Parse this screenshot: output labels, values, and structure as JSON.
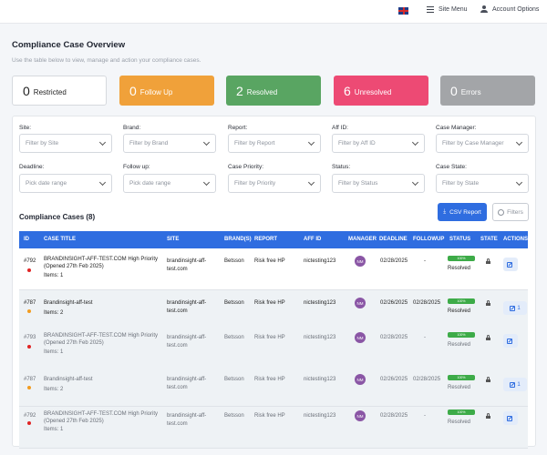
{
  "header": {
    "site_menu": "Site Menu",
    "account_options": "Account Options"
  },
  "page": {
    "title": "Compliance Case Overview",
    "subtitle": "Use the table below to view, manage and action your compliance cases."
  },
  "stats": [
    {
      "value": "0",
      "label": "Restricted",
      "color": "#ffffff"
    },
    {
      "value": "0",
      "label": "Follow Up",
      "color": "#f0a13a"
    },
    {
      "value": "2",
      "label": "Resolved",
      "color": "#59a562"
    },
    {
      "value": "6",
      "label": "Unresolved",
      "color": "#ed4a74"
    },
    {
      "value": "0",
      "label": "Errors",
      "color": "#a3a5a8"
    }
  ],
  "filters": [
    {
      "label": "Site:",
      "placeholder": "Filter by Site"
    },
    {
      "label": "Brand:",
      "placeholder": "Filter by Brand"
    },
    {
      "label": "Report:",
      "placeholder": "Filter by Report"
    },
    {
      "label": "Aff ID:",
      "placeholder": "Filter by Aff ID"
    },
    {
      "label": "Case Manager:",
      "placeholder": "Filter by Case Manager"
    },
    {
      "label": "Deadline:",
      "placeholder": "Pick date range"
    },
    {
      "label": "Follow up:",
      "placeholder": "Pick date range"
    },
    {
      "label": "Case Priority:",
      "placeholder": "Filter by Priority"
    },
    {
      "label": "Status:",
      "placeholder": "Filter by Status"
    },
    {
      "label": "Case State:",
      "placeholder": "Filter by State"
    }
  ],
  "cases": {
    "title": "Compliance Cases (8)",
    "csv_label": "CSV Report",
    "filters_label": "Filters",
    "columns": [
      "ID",
      "CASE TITLE",
      "SITE",
      "BRAND(S)",
      "REPORT",
      "AFF ID",
      "MANAGER",
      "DEADLINE",
      "FOLLOWUP",
      "STATUS",
      "STATE",
      "ACTIONS"
    ],
    "rows": [
      {
        "id": "#792",
        "title1": "BRANDINSIGHT-AFF-TEST.COM High Priority",
        "title2": "(Opened 27th Feb 2025)",
        "items": "Items: 1",
        "site1": "brandinsight-aff-",
        "site2": "test.com",
        "brand": "Betsson",
        "report": "Risk free HP",
        "aff_id": "nictesting123",
        "manager": "NM",
        "deadline": "02/28/2025",
        "followup": "-",
        "progress": "100%",
        "progress_value": 100,
        "status": "Resolved",
        "action_count": "",
        "priority_color": "#e02424"
      },
      {
        "id": "#787",
        "title1": "Brandinsight-aff-test",
        "title2": "",
        "items": "Items: 2",
        "site1": "brandinsight-aff-",
        "site2": "test.com",
        "brand": "Betsson",
        "report": "Risk free HP",
        "aff_id": "nictesting123",
        "manager": "NM",
        "deadline": "02/26/2025",
        "followup": "02/28/2025",
        "progress": "100%",
        "progress_value": 100,
        "status": "Resolved",
        "action_count": "1",
        "priority_color": "#f29c1f"
      },
      {
        "id": "#793",
        "title1": "BRANDINSIGHT-AFF-TEST.COM High Priority",
        "title2": "(Opened 27th Feb 2025)",
        "items": "Items: 1",
        "site1": "brandinsight-aff-",
        "site2": "test.com",
        "brand": "Betsson",
        "report": "Risk free HP",
        "aff_id": "nictesting123",
        "manager": "NM",
        "deadline": "02/28/2025",
        "followup": "-",
        "progress": "100%",
        "progress_value": 100,
        "status": "Resolved",
        "action_count": "",
        "priority_color": "#e02424"
      },
      {
        "id": "#787",
        "title1": "Brandinsight-aff-test",
        "title2": "",
        "items": "Items: 2",
        "site1": "brandinsight-aff-",
        "site2": "test.com",
        "brand": "Betsson",
        "report": "Risk free HP",
        "aff_id": "nictesting123",
        "manager": "NM",
        "deadline": "02/26/2025",
        "followup": "02/28/2025",
        "progress": "100%",
        "progress_value": 100,
        "status": "Resolved",
        "action_count": "1",
        "priority_color": "#f29c1f"
      },
      {
        "id": "#792",
        "title1": "BRANDINSIGHT-AFF-TEST.COM High Priority",
        "title2": "(Opened 27th Feb 2025)",
        "items": "Items: 1",
        "site1": "brandinsight-aff-",
        "site2": "test.com",
        "brand": "Betsson",
        "report": "Risk free HP",
        "aff_id": "nictesting123",
        "manager": "NM",
        "deadline": "02/28/2025",
        "followup": "-",
        "progress": "100%",
        "progress_value": 100,
        "status": "Resolved",
        "action_count": "",
        "priority_color": "#e02424"
      }
    ]
  }
}
